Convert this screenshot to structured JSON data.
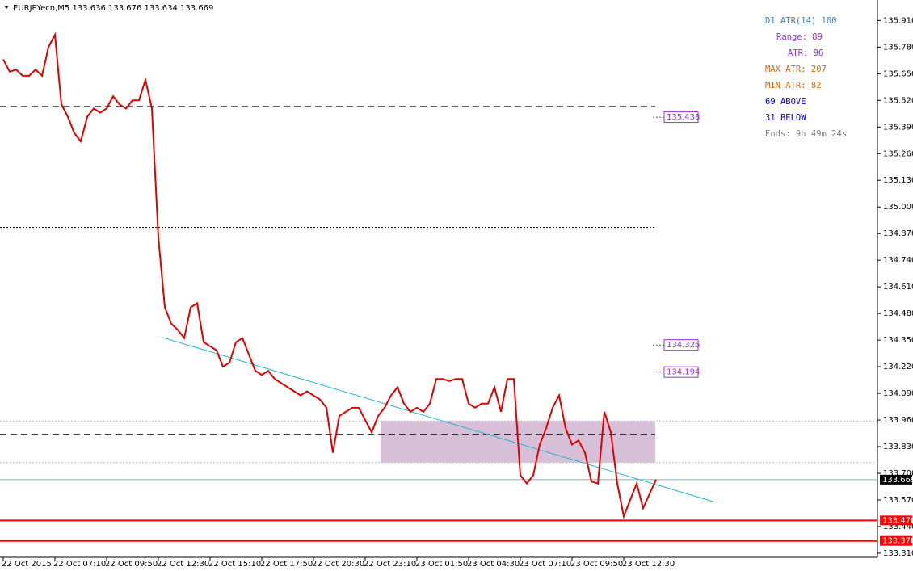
{
  "chart_data": {
    "type": "line",
    "title": "EURJPYecn,M5  133.636 133.676 133.634 133.669",
    "categories": [
      "22 Oct 2015",
      null,
      null,
      null,
      null,
      null,
      null,
      null,
      "22 Oct 07:10",
      null,
      null,
      null,
      null,
      null,
      null,
      null,
      "22 Oct 09:50",
      null,
      null,
      null,
      null,
      null,
      null,
      null,
      "22 Oct 12:30",
      null,
      null,
      null,
      null,
      null,
      null,
      null,
      "22 Oct 15:10",
      null,
      null,
      null,
      null,
      null,
      null,
      null,
      "22 Oct 17:50",
      null,
      null,
      null,
      null,
      null,
      null,
      null,
      "22 Oct 20:30",
      null,
      null,
      null,
      null,
      null,
      null,
      null,
      "22 Oct 23:10",
      null,
      null,
      null,
      null,
      null,
      null,
      null,
      "23 Oct 01:50",
      null,
      null,
      null,
      null,
      null,
      null,
      null,
      "23 Oct 04:30",
      null,
      null,
      null,
      null,
      null,
      null,
      null,
      "23 Oct 07:10",
      null,
      null,
      null,
      null,
      null,
      null,
      null,
      "23 Oct 09:50",
      null,
      null,
      null,
      null,
      null,
      null,
      null,
      "23 Oct 12:30",
      null,
      null,
      null,
      null,
      null
    ],
    "series": [
      {
        "color": "#e00000",
        "values": [
          135.72,
          135.66,
          135.67,
          135.64,
          135.64,
          135.67,
          135.64,
          135.78,
          135.84,
          135.5,
          135.44,
          135.36,
          135.32,
          135.44,
          135.48,
          135.46,
          135.48,
          135.54,
          135.5,
          135.48,
          135.52,
          135.52,
          135.62,
          135.48,
          134.85,
          134.51,
          134.43,
          134.4,
          134.36,
          134.51,
          134.53,
          134.34,
          134.32,
          134.3,
          134.22,
          134.24,
          134.34,
          134.36,
          134.28,
          134.2,
          134.18,
          134.2,
          134.16,
          134.14,
          134.12,
          134.1,
          134.08,
          134.1,
          134.08,
          134.06,
          134.02,
          133.8,
          133.98,
          134.0,
          134.02,
          134.02,
          133.96,
          133.9,
          133.98,
          134.02,
          134.08,
          134.12,
          134.04,
          134.0,
          134.02,
          134.0,
          134.04,
          134.16,
          134.16,
          134.15,
          134.16,
          134.16,
          134.04,
          134.02,
          134.04,
          134.04,
          134.12,
          134.0,
          134.16,
          134.16,
          133.69,
          133.65,
          133.69,
          133.84,
          133.92,
          134.02,
          134.08,
          133.92,
          133.84,
          133.86,
          133.8,
          133.66,
          133.65,
          134.0,
          133.9,
          133.65,
          133.49,
          133.57,
          133.65,
          133.53,
          133.6,
          133.669
        ]
      }
    ],
    "ylim": [
      133.29,
      136.01
    ],
    "yticks": [
      {
        "value": 133.31,
        "label": "133.310"
      },
      {
        "value": 133.44,
        "label": "133.440"
      },
      {
        "value": 133.57,
        "label": "133.570"
      },
      {
        "value": 133.7,
        "label": "133.700"
      },
      {
        "value": 133.83,
        "label": "133.830"
      },
      {
        "value": 133.96,
        "label": "133.960"
      },
      {
        "value": 134.09,
        "label": "134.090"
      },
      {
        "value": 134.22,
        "label": "134.220"
      },
      {
        "value": 134.35,
        "label": "134.350"
      },
      {
        "value": 134.48,
        "label": "134.480"
      },
      {
        "value": 134.61,
        "label": "134.610"
      },
      {
        "value": 134.74,
        "label": "134.740"
      },
      {
        "value": 134.87,
        "label": "134.870"
      },
      {
        "value": 135,
        "label": "135.000"
      },
      {
        "value": 135.13,
        "label": "135.130"
      },
      {
        "value": 135.26,
        "label": "135.260"
      },
      {
        "value": 135.39,
        "label": "135.390"
      },
      {
        "value": 135.52,
        "label": "135.520"
      },
      {
        "value": 135.65,
        "label": "135.650"
      },
      {
        "value": 135.78,
        "label": "135.780"
      },
      {
        "value": 135.91,
        "label": "135.910"
      }
    ],
    "zone": {
      "ylim": [
        133.752,
        133.955
      ],
      "color": "#d8bfd8"
    },
    "hlines": [
      {
        "value": 135.49,
        "color": "#000000",
        "style": "dashed"
      },
      {
        "value": 134.9,
        "color": "#000000",
        "style": "dotted"
      },
      {
        "value": 133.89,
        "color": "#000000",
        "style": "dashed"
      },
      {
        "value": 133.955,
        "color": "#c0c0c0",
        "style": "dotted"
      },
      {
        "value": 133.752,
        "color": "#c0c0c0",
        "style": "dotted"
      }
    ],
    "levels": [
      {
        "value": 133.47,
        "label": "133.470",
        "color": "#ff0000"
      },
      {
        "value": 133.37,
        "label": "133.370",
        "color": "#ff0000"
      }
    ],
    "current_price": {
      "value": 133.669,
      "label": "133.669",
      "color": "#5f9ea0"
    },
    "trendline": {
      "values": [
        134.364,
        133.559
      ],
      "color": "#1fb5d0"
    },
    "price_tags": [
      {
        "value": 135.438,
        "label": "135.438"
      },
      {
        "value": 134.326,
        "label": "134.326"
      },
      {
        "value": 134.194,
        "label": "134.194"
      }
    ],
    "tag_color": "#9932cc",
    "annotations": [
      {
        "text": "D1 ATR(14) 100",
        "color": "#4682b4"
      },
      {
        "text": "Range: 89",
        "color": "#9932cc"
      },
      {
        "text": "ATR: 96",
        "color": "#9932cc"
      },
      {
        "text": "MAX ATR: 207",
        "color": "#d2691e"
      },
      {
        "text": "MIN ATR: 82",
        "color": "#d2691e"
      },
      {
        "text": "69 ABOVE",
        "color": "#0000cd"
      },
      {
        "text": "31 BELOW",
        "color": "#0000cd"
      },
      {
        "text": "Ends: 9h 49m 24s",
        "color": "#808080"
      }
    ]
  }
}
